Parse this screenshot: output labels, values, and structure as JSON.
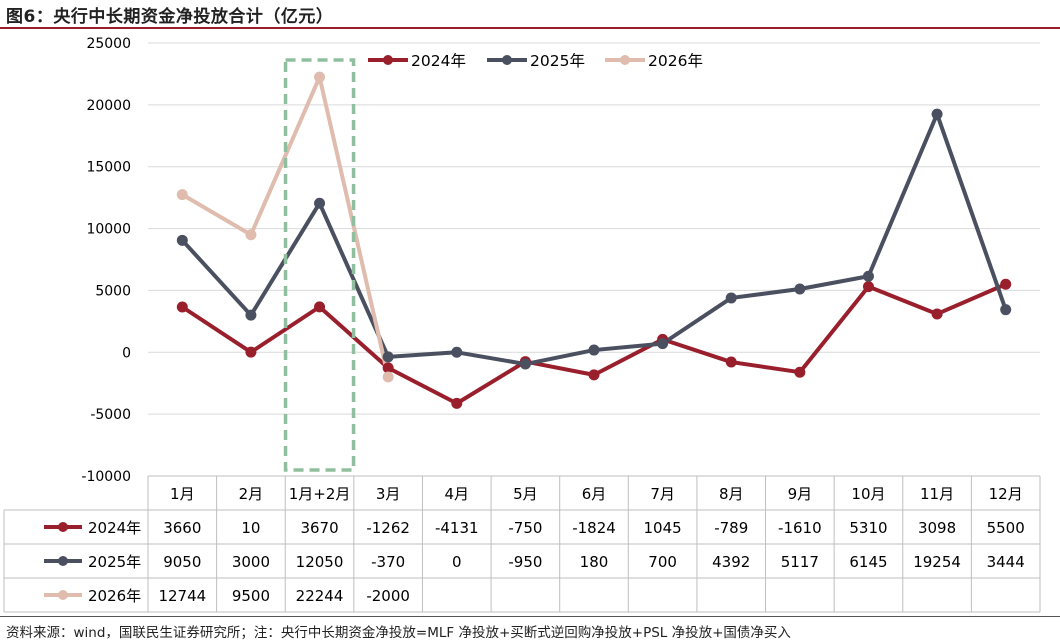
{
  "title": "图6：央行中长期资金净投放合计（亿元）",
  "source": "资料来源：wind，国联民生证券研究所；注：央行中长期资金净投放=MLF 净投放+买断式逆回购净投放+PSL 净投放+国债净买入",
  "chart_data": {
    "type": "line",
    "categories": [
      "1月",
      "2月",
      "1月+2月",
      "3月",
      "4月",
      "5月",
      "6月",
      "7月",
      "8月",
      "9月",
      "10月",
      "11月",
      "12月"
    ],
    "series": [
      {
        "name": "2024年",
        "color": "#9a1f2c",
        "values": [
          3660,
          10,
          3670,
          -1262,
          -4131,
          -750,
          -1824,
          1045,
          -789,
          -1610,
          5310,
          3098,
          5500
        ]
      },
      {
        "name": "2025年",
        "color": "#4a5060",
        "values": [
          9050,
          3000,
          12050,
          -370,
          0,
          -950,
          180,
          700,
          4392,
          5117,
          6145,
          19254,
          3444
        ]
      },
      {
        "name": "2026年",
        "color": "#dfbcad",
        "values": [
          12744,
          9500,
          22244,
          -2000,
          null,
          null,
          null,
          null,
          null,
          null,
          null,
          null,
          null
        ]
      }
    ],
    "yticks": [
      "25000",
      "20000",
      "15000",
      "10000",
      "5000",
      "0",
      "-5000",
      "-10000"
    ],
    "ylim": [
      -10000,
      25000
    ],
    "grid": true,
    "legend": "top",
    "highlight": {
      "categories": [
        "1月+2月"
      ],
      "style": "dashed-box",
      "color": "#8fbf9f"
    },
    "data_table": true
  }
}
